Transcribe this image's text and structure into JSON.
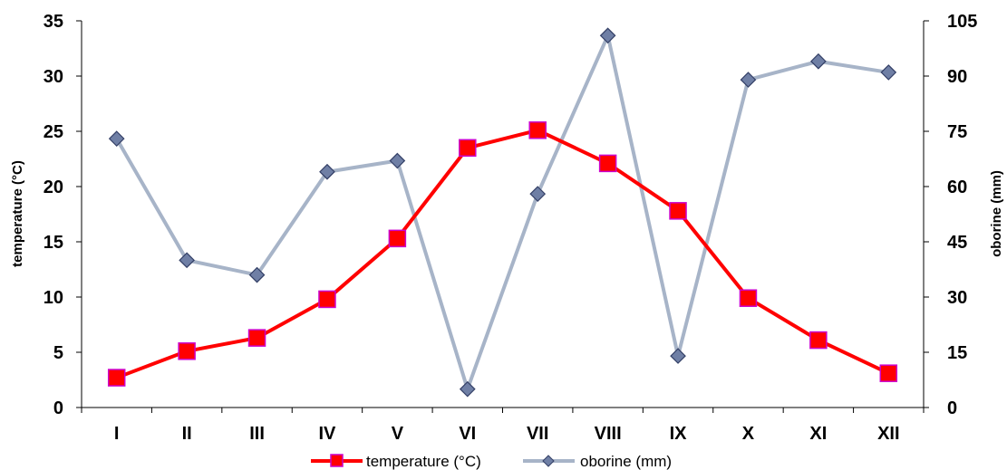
{
  "chart_data": {
    "type": "line",
    "categories": [
      "I",
      "II",
      "III",
      "IV",
      "V",
      "VI",
      "VII",
      "VIII",
      "IX",
      "X",
      "XI",
      "XII"
    ],
    "series": [
      {
        "name": "temperature (°C)",
        "axis": "left",
        "values": [
          2.7,
          5.1,
          6.3,
          9.8,
          15.3,
          23.5,
          25.1,
          22.1,
          17.8,
          9.9,
          6.1,
          3.1
        ],
        "color": "#ff0000",
        "marker": "square",
        "marker_color": "#ff0000",
        "marker_edge": "#cc00cc"
      },
      {
        "name": "oborine (mm)",
        "axis": "right",
        "values": [
          73,
          40,
          36,
          64,
          67,
          5,
          58,
          101,
          14,
          89,
          94,
          91
        ],
        "color": "#a7b4c8",
        "marker": "diamond",
        "marker_color": "#6f7fa5",
        "marker_edge": "#333f66"
      }
    ],
    "y_left": {
      "label": "temperature (°C)",
      "lim": [
        0,
        35
      ],
      "ticks": [
        "0",
        "5",
        "10",
        "15",
        "20",
        "25",
        "30",
        "35"
      ]
    },
    "y_right": {
      "label": "oborine (mm)",
      "lim": [
        0,
        105
      ],
      "ticks": [
        "0",
        "15",
        "30",
        "45",
        "60",
        "75",
        "90",
        "105"
      ]
    },
    "grid": false,
    "legend_position": "bottom"
  }
}
